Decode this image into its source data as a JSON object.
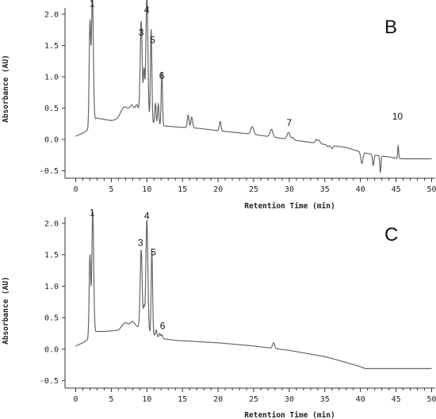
{
  "chart_data": [
    {
      "type": "line",
      "panel": "B",
      "xlabel": "Retention Time (min)",
      "ylabel": "Absorbance (AU)",
      "xlim": [
        -1.5,
        50.5
      ],
      "ylim": [
        -0.62,
        2.1
      ],
      "xticks": [
        0,
        5,
        10,
        15,
        20,
        25,
        30,
        35,
        40,
        45,
        50
      ],
      "xtick_labels": [
        "0",
        "5",
        "10",
        "15",
        "20",
        "25",
        "30",
        "35",
        "40",
        "45",
        "50"
      ],
      "yticks": [
        -0.5,
        0.0,
        0.5,
        1.0,
        1.5,
        2.0
      ],
      "ytick_labels": [
        "-0.5",
        "0.0",
        "0.5",
        "1.0",
        "1.5",
        "2.0"
      ],
      "grid": false,
      "peak_labels": [
        {
          "label": "1",
          "x": 2.3,
          "y": 2.08
        },
        {
          "label": "3",
          "x": 9.2,
          "y": 1.62
        },
        {
          "label": "4",
          "x": 10.0,
          "y": 1.98
        },
        {
          "label": "5",
          "x": 10.8,
          "y": 1.5
        },
        {
          "label": "6",
          "x": 12.1,
          "y": 0.93
        },
        {
          "label": "7",
          "x": 30.0,
          "y": 0.18
        },
        {
          "label": "10",
          "x": 45.2,
          "y": 0.28
        }
      ],
      "baseline": {
        "x": [
          0.0,
          1.0,
          1.8,
          2.7,
          3.0,
          4.0,
          5.0,
          6.0,
          7.0,
          8.0,
          9.0,
          10.5,
          12.0,
          14.0,
          17.0,
          20.0,
          25.0,
          30.0,
          35.0,
          38.0,
          40.0,
          42.0,
          44.0,
          45.0,
          46.0,
          50.0
        ],
        "y": [
          0.05,
          0.1,
          0.16,
          0.32,
          0.34,
          0.32,
          0.3,
          0.32,
          0.38,
          0.42,
          0.38,
          0.28,
          0.22,
          0.2,
          0.18,
          0.14,
          0.08,
          0.0,
          -0.08,
          -0.13,
          -0.2,
          -0.25,
          -0.28,
          -0.3,
          -0.31,
          -0.31
        ]
      },
      "peaks": [
        {
          "rt": 2.0,
          "height": 1.65,
          "width": 0.11
        },
        {
          "rt": 2.35,
          "height": 2.05,
          "width": 0.13
        },
        {
          "rt": 6.8,
          "height": 0.15,
          "width": 0.5
        },
        {
          "rt": 7.9,
          "height": 0.12,
          "width": 0.3
        },
        {
          "rt": 8.6,
          "height": 0.15,
          "width": 0.2
        },
        {
          "rt": 9.2,
          "height": 1.52,
          "width": 0.14
        },
        {
          "rt": 9.6,
          "height": 0.75,
          "width": 0.1
        },
        {
          "rt": 10.0,
          "height": 2.0,
          "width": 0.14
        },
        {
          "rt": 10.6,
          "height": 1.48,
          "width": 0.1
        },
        {
          "rt": 11.2,
          "height": 0.32,
          "width": 0.09
        },
        {
          "rt": 11.6,
          "height": 0.33,
          "width": 0.09
        },
        {
          "rt": 12.1,
          "height": 0.86,
          "width": 0.09
        },
        {
          "rt": 15.8,
          "height": 0.2,
          "width": 0.12
        },
        {
          "rt": 16.3,
          "height": 0.17,
          "width": 0.12
        },
        {
          "rt": 20.3,
          "height": 0.15,
          "width": 0.12
        },
        {
          "rt": 24.8,
          "height": 0.12,
          "width": 0.2
        },
        {
          "rt": 27.5,
          "height": 0.12,
          "width": 0.2
        },
        {
          "rt": 29.9,
          "height": 0.11,
          "width": 0.2
        },
        {
          "rt": 30.5,
          "height": 0.04,
          "width": 0.15
        },
        {
          "rt": 33.8,
          "height": 0.06,
          "width": 0.15
        },
        {
          "rt": 34.2,
          "height": 0.05,
          "width": 0.15
        },
        {
          "rt": 35.4,
          "height": -0.03,
          "width": 0.15
        },
        {
          "rt": 36.0,
          "height": -0.05,
          "width": 0.15
        },
        {
          "rt": 40.2,
          "height": -0.18,
          "width": 0.15
        },
        {
          "rt": 41.8,
          "height": -0.17,
          "width": 0.1
        },
        {
          "rt": 42.8,
          "height": -0.26,
          "width": 0.08
        },
        {
          "rt": 45.3,
          "height": 0.2,
          "width": 0.07
        }
      ]
    },
    {
      "type": "line",
      "panel": "C",
      "xlabel": "Retention Time (min)",
      "ylabel": "Absorbance (AU)",
      "xlim": [
        -1.5,
        50.5
      ],
      "ylim": [
        -0.62,
        2.1
      ],
      "xticks": [
        0,
        5,
        10,
        15,
        20,
        25,
        30,
        35,
        40,
        45,
        50
      ],
      "xtick_labels": [
        "0",
        "5",
        "10",
        "15",
        "20",
        "25",
        "30",
        "35",
        "40",
        "45",
        "50"
      ],
      "yticks": [
        -0.5,
        0.0,
        0.5,
        1.0,
        1.5,
        2.0
      ],
      "ytick_labels": [
        "-0.5",
        "0.0",
        "0.5",
        "1.0",
        "1.5",
        "2.0"
      ],
      "grid": false,
      "peak_labels": [
        {
          "label": "1",
          "x": 2.3,
          "y": 2.08
        },
        {
          "label": "3",
          "x": 9.1,
          "y": 1.6
        },
        {
          "label": "4",
          "x": 10.0,
          "y": 2.03
        },
        {
          "label": "5",
          "x": 10.9,
          "y": 1.45
        },
        {
          "label": "6",
          "x": 12.2,
          "y": 0.28
        }
      ],
      "baseline": {
        "x": [
          0.0,
          1.0,
          1.8,
          2.7,
          3.0,
          4.0,
          6.0,
          7.0,
          8.0,
          9.0,
          10.5,
          12.0,
          14.0,
          17.0,
          20.0,
          25.0,
          30.0,
          33.0,
          35.0,
          37.0,
          40.0,
          40.7,
          45.0,
          50.0
        ],
        "y": [
          0.05,
          0.1,
          0.16,
          0.27,
          0.28,
          0.28,
          0.3,
          0.34,
          0.38,
          0.34,
          0.24,
          0.17,
          0.14,
          0.12,
          0.1,
          0.05,
          -0.02,
          -0.08,
          -0.12,
          -0.18,
          -0.28,
          -0.31,
          -0.31,
          -0.31
        ]
      },
      "peaks": [
        {
          "rt": 2.0,
          "height": 1.3,
          "width": 0.11
        },
        {
          "rt": 2.4,
          "height": 1.95,
          "width": 0.13
        },
        {
          "rt": 6.9,
          "height": 0.08,
          "width": 0.4
        },
        {
          "rt": 8.0,
          "height": 0.06,
          "width": 0.3
        },
        {
          "rt": 9.2,
          "height": 1.25,
          "width": 0.14
        },
        {
          "rt": 9.6,
          "height": 0.35,
          "width": 0.1
        },
        {
          "rt": 10.0,
          "height": 1.78,
          "width": 0.14
        },
        {
          "rt": 10.7,
          "height": 1.33,
          "width": 0.1
        },
        {
          "rt": 11.3,
          "height": 0.1,
          "width": 0.1
        },
        {
          "rt": 11.8,
          "height": 0.07,
          "width": 0.1
        },
        {
          "rt": 12.1,
          "height": 0.06,
          "width": 0.1
        },
        {
          "rt": 27.8,
          "height": 0.09,
          "width": 0.15
        }
      ]
    }
  ]
}
